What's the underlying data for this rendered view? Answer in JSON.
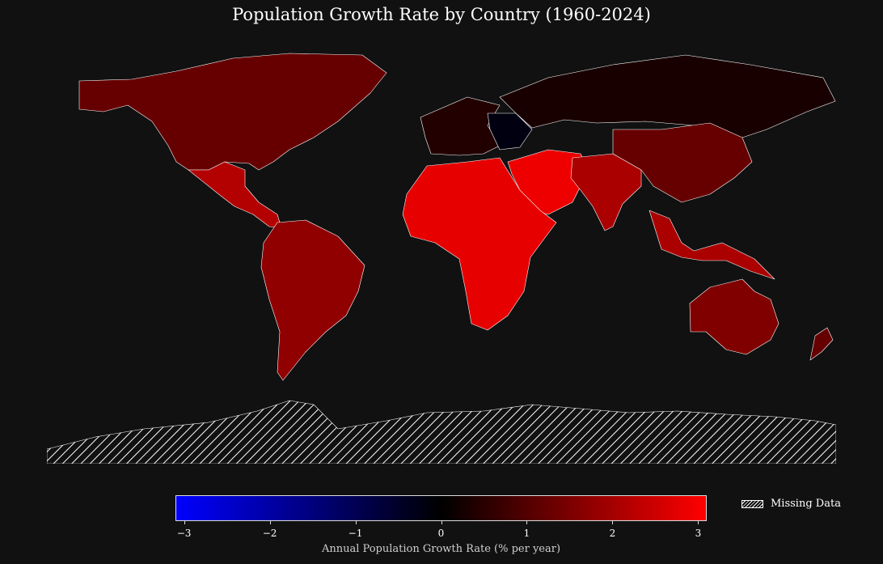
{
  "title": "Population Growth Rate by Country (1960-2024)",
  "colorbar": {
    "label": "Annual Population Growth Rate (% per year)",
    "min": -3.1,
    "max": 3.1,
    "ticks": [
      "−3",
      "−2",
      "−1",
      "0",
      "1",
      "2",
      "3"
    ],
    "tick_values": [
      -3,
      -2,
      -1,
      0,
      1,
      2,
      3
    ],
    "colors": [
      "#0000ff",
      "#000000",
      "#ff0000"
    ]
  },
  "legend": {
    "label": "Missing Data"
  },
  "colors": {
    "background": "#111111",
    "border": "#ffffff"
  },
  "map_regions": [
    {
      "name": "North America",
      "value": 1.2
    },
    {
      "name": "Central America",
      "value": 2.1
    },
    {
      "name": "South America",
      "value": 1.7
    },
    {
      "name": "Western Europe",
      "value": 0.4
    },
    {
      "name": "Eastern Europe",
      "value": -0.2
    },
    {
      "name": "Russia",
      "value": 0.3
    },
    {
      "name": "Middle East",
      "value": 2.8
    },
    {
      "name": "Africa",
      "value": 2.7
    },
    {
      "name": "South Asia",
      "value": 2.0
    },
    {
      "name": "East Asia",
      "value": 1.2
    },
    {
      "name": "Southeast Asia",
      "value": 2.0
    },
    {
      "name": "Australia",
      "value": 1.5
    },
    {
      "name": "New Zealand",
      "value": 1.2
    },
    {
      "name": "Antarctica",
      "value": null
    }
  ]
}
